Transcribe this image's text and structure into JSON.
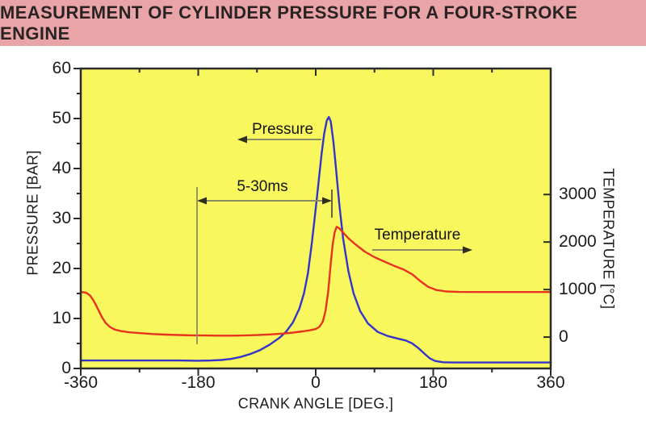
{
  "header": {
    "title": "MEASUREMENT OF CYLINDER PRESSURE FOR A FOUR-STROKE ENGINE",
    "background": "#e9a4a7",
    "text_color": "#2a2324"
  },
  "colors": {
    "page_background": "#ffffff",
    "plot_background": "#f9f75e",
    "axis": "#2b2b2b",
    "pressure_line": "#3434cb",
    "temperature_line": "#e5331f",
    "annotation_line": "#8c8c64",
    "arrowhead": "#2f2f20"
  },
  "chart_data": {
    "type": "line",
    "grid": false,
    "legend_position": "none",
    "x_axis": {
      "label": "CRANK ANGLE [DEG.]",
      "range": [
        -360,
        360
      ],
      "major_ticks": [
        -360,
        -180,
        0,
        180,
        360
      ],
      "minor_ticks": [
        -270,
        -90,
        90,
        270
      ]
    },
    "y_left": {
      "label": "PRESSURE [BAR]",
      "range": [
        0,
        60
      ],
      "major_ticks": [
        0,
        10,
        20,
        30,
        40,
        50,
        60
      ],
      "minor_ticks": [
        5,
        15,
        25,
        35,
        45,
        55
      ]
    },
    "y_right": {
      "label": "TEMPERATURE [°C]",
      "range": [
        -660,
        5650
      ],
      "major_ticks": [
        0,
        1000,
        2000,
        3000
      ],
      "minor_ticks": []
    },
    "series": [
      {
        "name": "Pressure",
        "axis": "left",
        "color": "#3434cb",
        "points": [
          [
            -360,
            1.6
          ],
          [
            -330,
            1.6
          ],
          [
            -300,
            1.6
          ],
          [
            -270,
            1.6
          ],
          [
            -240,
            1.6
          ],
          [
            -210,
            1.6
          ],
          [
            -180,
            1.55
          ],
          [
            -160,
            1.6
          ],
          [
            -145,
            1.7
          ],
          [
            -130,
            1.9
          ],
          [
            -115,
            2.3
          ],
          [
            -100,
            2.9
          ],
          [
            -85,
            3.7
          ],
          [
            -70,
            4.8
          ],
          [
            -55,
            6.2
          ],
          [
            -45,
            7.4
          ],
          [
            -35,
            9.2
          ],
          [
            -25,
            12
          ],
          [
            -18,
            15
          ],
          [
            -12,
            19
          ],
          [
            -6,
            25
          ],
          [
            0,
            32
          ],
          [
            5,
            38
          ],
          [
            9,
            43
          ],
          [
            13,
            47
          ],
          [
            17,
            49.6
          ],
          [
            20,
            50.3
          ],
          [
            23,
            49.4
          ],
          [
            27,
            45.5
          ],
          [
            31,
            40
          ],
          [
            36,
            33
          ],
          [
            42,
            26
          ],
          [
            50,
            19.5
          ],
          [
            58,
            15
          ],
          [
            68,
            11.5
          ],
          [
            80,
            9
          ],
          [
            95,
            7.3
          ],
          [
            110,
            6.5
          ],
          [
            125,
            6.0
          ],
          [
            138,
            5.6
          ],
          [
            148,
            5.0
          ],
          [
            158,
            4.0
          ],
          [
            167,
            2.9
          ],
          [
            175,
            2.0
          ],
          [
            183,
            1.5
          ],
          [
            195,
            1.25
          ],
          [
            210,
            1.2
          ],
          [
            240,
            1.2
          ],
          [
            280,
            1.2
          ],
          [
            320,
            1.2
          ],
          [
            360,
            1.2
          ]
        ]
      },
      {
        "name": "Temperature",
        "axis": "right",
        "color": "#e5331f",
        "points": [
          [
            -360,
            950
          ],
          [
            -352,
            935
          ],
          [
            -346,
            880
          ],
          [
            -340,
            760
          ],
          [
            -334,
            600
          ],
          [
            -328,
            430
          ],
          [
            -322,
            300
          ],
          [
            -315,
            210
          ],
          [
            -308,
            160
          ],
          [
            -300,
            130
          ],
          [
            -285,
            100
          ],
          [
            -270,
            85
          ],
          [
            -250,
            65
          ],
          [
            -230,
            52
          ],
          [
            -210,
            44
          ],
          [
            -190,
            38
          ],
          [
            -170,
            33
          ],
          [
            -150,
            30
          ],
          [
            -130,
            30
          ],
          [
            -110,
            34
          ],
          [
            -90,
            42
          ],
          [
            -70,
            55
          ],
          [
            -50,
            75
          ],
          [
            -35,
            95
          ],
          [
            -20,
            120
          ],
          [
            -10,
            140
          ],
          [
            0,
            170
          ],
          [
            6,
            220
          ],
          [
            11,
            330
          ],
          [
            15,
            550
          ],
          [
            19,
            950
          ],
          [
            23,
            1550
          ],
          [
            26,
            1950
          ],
          [
            29,
            2200
          ],
          [
            32,
            2320
          ],
          [
            36,
            2290
          ],
          [
            42,
            2200
          ],
          [
            50,
            2080
          ],
          [
            60,
            1960
          ],
          [
            75,
            1800
          ],
          [
            90,
            1680
          ],
          [
            105,
            1590
          ],
          [
            120,
            1500
          ],
          [
            135,
            1420
          ],
          [
            148,
            1320
          ],
          [
            160,
            1180
          ],
          [
            172,
            1060
          ],
          [
            185,
            990
          ],
          [
            200,
            960
          ],
          [
            220,
            950
          ],
          [
            260,
            948
          ],
          [
            300,
            948
          ],
          [
            360,
            948
          ]
        ]
      }
    ],
    "annotations": {
      "pressure": {
        "text": "Pressure"
      },
      "interval": {
        "text": "5-30ms"
      },
      "temperature": {
        "text": "Temperature"
      }
    }
  }
}
